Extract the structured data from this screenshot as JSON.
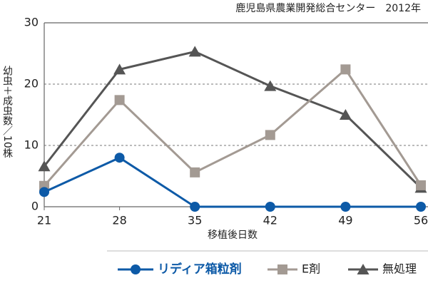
{
  "chart_data": {
    "type": "line",
    "subtitle": "鹿児島県農業開発総合センター　2012年",
    "x_label": "移植後日数",
    "y_label": "幼虫＋成虫数／10株",
    "x": [
      21,
      28,
      35,
      42,
      49,
      56
    ],
    "xlim": [
      21,
      56
    ],
    "xticks": [
      21,
      28,
      35,
      42,
      49,
      56
    ],
    "ylim": [
      0,
      30
    ],
    "yticks": [
      0,
      10,
      20,
      30
    ],
    "grid": true,
    "series": [
      {
        "name": "リディア箱粒剤",
        "color": "#0d5aa7",
        "marker": "circle",
        "values": [
          2.4,
          8.0,
          0,
          0,
          0,
          0
        ]
      },
      {
        "name": "E剤",
        "color": "#a39a93",
        "marker": "square",
        "values": [
          3.4,
          17.4,
          5.6,
          11.7,
          22.4,
          3.5
        ]
      },
      {
        "name": "無処理",
        "color": "#555555",
        "marker": "triangle",
        "values": [
          6.6,
          22.4,
          25.3,
          19.7,
          15.0,
          3.1
        ]
      }
    ]
  }
}
